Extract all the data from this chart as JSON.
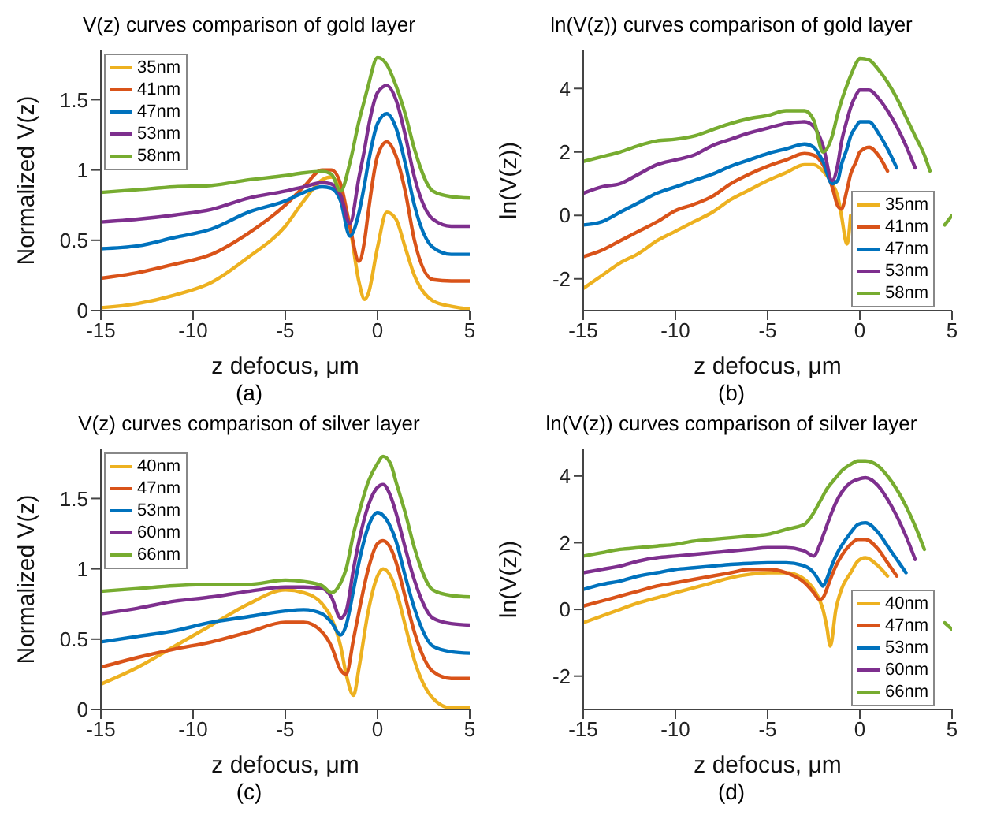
{
  "chart_data": [
    {
      "type": "line",
      "title": "V(z) curves comparison of gold layer",
      "xlabel": "z defocus, μm",
      "ylabel": "Normalized V(z)",
      "annotations": [
        "(a)"
      ],
      "legend": "top left",
      "xlim": [
        -15,
        5
      ],
      "xticks": [
        -15,
        -10,
        -5,
        0,
        5
      ],
      "ylim": [
        0,
        1.85
      ],
      "yticks": [
        0,
        0.5,
        1,
        1.5
      ],
      "x": [
        -15,
        -13,
        -11,
        -9,
        -7,
        -5,
        -4,
        -3,
        -2.5,
        -2,
        -1.5,
        -1,
        -0.7,
        -0.5,
        0,
        0.5,
        1,
        1.5,
        2,
        3,
        4,
        5
      ],
      "series": [
        {
          "name": "35nm",
          "color": "#edb120",
          "values": [
            0.02,
            0.05,
            0.11,
            0.2,
            0.38,
            0.6,
            0.78,
            0.93,
            0.95,
            0.85,
            0.6,
            0.2,
            0.08,
            0.12,
            0.45,
            0.7,
            0.65,
            0.45,
            0.25,
            0.07,
            0.03,
            0.01
          ]
        },
        {
          "name": "41nm",
          "color": "#d95319",
          "values": [
            0.23,
            0.27,
            0.33,
            0.4,
            0.55,
            0.75,
            0.88,
            1.0,
            1.0,
            0.9,
            0.6,
            0.35,
            0.5,
            0.7,
            1.1,
            1.2,
            1.1,
            0.85,
            0.5,
            0.22,
            0.21,
            0.21
          ]
        },
        {
          "name": "47nm",
          "color": "#0072bd",
          "values": [
            0.44,
            0.46,
            0.52,
            0.58,
            0.7,
            0.78,
            0.84,
            0.88,
            0.87,
            0.78,
            0.53,
            0.7,
            0.9,
            1.05,
            1.33,
            1.4,
            1.3,
            1.05,
            0.75,
            0.45,
            0.4,
            0.4
          ]
        },
        {
          "name": "53nm",
          "color": "#7e2f8e",
          "values": [
            0.63,
            0.65,
            0.68,
            0.72,
            0.8,
            0.85,
            0.88,
            0.91,
            0.9,
            0.82,
            0.62,
            0.95,
            1.15,
            1.3,
            1.55,
            1.6,
            1.5,
            1.25,
            0.95,
            0.65,
            0.6,
            0.6
          ]
        },
        {
          "name": "58nm",
          "color": "#77ac30",
          "values": [
            0.84,
            0.86,
            0.88,
            0.89,
            0.93,
            0.96,
            0.98,
            0.99,
            0.97,
            0.85,
            1.05,
            1.35,
            1.5,
            1.6,
            1.8,
            1.75,
            1.6,
            1.4,
            1.15,
            0.85,
            0.81,
            0.8
          ]
        }
      ]
    },
    {
      "type": "line",
      "title": "ln(V(z)) curves comparison of gold layer",
      "xlabel": "z defocus, μm",
      "ylabel": "ln(V(z))",
      "annotations": [
        "(b)"
      ],
      "legend": "bottom right",
      "xlim": [
        -15,
        5
      ],
      "xticks": [
        -15,
        -10,
        -5,
        0,
        5
      ],
      "ylim": [
        -3,
        5.2
      ],
      "yticks": [
        -2,
        0,
        2,
        4
      ],
      "x": [
        -15,
        -14,
        -13,
        -12,
        -11,
        -10,
        -9,
        -8,
        -7,
        -6,
        -5,
        -4,
        -3,
        -2.5,
        -2,
        -1.5,
        -1.2,
        -1,
        -0.7,
        -0.5,
        -0.2,
        0,
        0.5,
        1,
        1.5,
        2,
        2.5,
        3,
        3.5,
        3.8,
        4.3,
        4.6,
        5
      ],
      "series": [
        {
          "name": "35nm",
          "color": "#edb120",
          "values": [
            -2.3,
            -1.9,
            -1.5,
            -1.2,
            -0.8,
            -0.5,
            -0.2,
            0.1,
            0.5,
            0.8,
            1.1,
            1.35,
            1.6,
            1.6,
            1.4,
            1.0,
            0.6,
            0.0,
            -0.9,
            0.0,
            null,
            null,
            null,
            null,
            null,
            null,
            null,
            null,
            null,
            null,
            null,
            null,
            null
          ]
        },
        {
          "name": "41nm",
          "color": "#d95319",
          "values": [
            -1.3,
            -1.1,
            -0.8,
            -0.5,
            -0.2,
            0.15,
            0.35,
            0.6,
            1.0,
            1.3,
            1.55,
            1.75,
            1.95,
            1.9,
            1.6,
            0.9,
            0.3,
            0.2,
            0.8,
            1.3,
            1.7,
            2.0,
            2.15,
            1.9,
            1.4,
            null,
            null,
            null,
            null,
            null,
            null,
            null,
            null
          ]
        },
        {
          "name": "47nm",
          "color": "#0072bd",
          "values": [
            -0.3,
            -0.2,
            0.1,
            0.4,
            0.7,
            0.9,
            1.1,
            1.3,
            1.55,
            1.75,
            1.95,
            2.1,
            2.25,
            2.15,
            1.7,
            1.0,
            1.1,
            1.6,
            2.1,
            2.5,
            2.8,
            2.95,
            2.95,
            2.6,
            2.1,
            1.5,
            null,
            null,
            null,
            null,
            null,
            null,
            null
          ]
        },
        {
          "name": "53nm",
          "color": "#7e2f8e",
          "values": [
            0.7,
            0.9,
            1.0,
            1.3,
            1.6,
            1.75,
            1.9,
            2.2,
            2.4,
            2.6,
            2.75,
            2.9,
            2.95,
            2.8,
            2.2,
            1.1,
            1.6,
            2.3,
            3.0,
            3.4,
            3.8,
            3.95,
            3.95,
            3.7,
            3.3,
            2.8,
            2.2,
            1.5,
            null,
            null,
            null,
            null,
            null
          ]
        },
        {
          "name": "58nm",
          "color": "#77ac30",
          "values": [
            1.7,
            1.85,
            2.0,
            2.2,
            2.35,
            2.4,
            2.5,
            2.7,
            2.9,
            3.05,
            3.15,
            3.3,
            3.3,
            3.0,
            2.0,
            2.5,
            3.2,
            3.6,
            4.1,
            4.4,
            4.8,
            4.95,
            4.9,
            4.6,
            4.2,
            3.7,
            3.1,
            2.5,
            1.9,
            1.4,
            null,
            -0.3,
            0.0
          ]
        }
      ]
    },
    {
      "type": "line",
      "title": "V(z) curves comparison of silver layer",
      "xlabel": "z defocus, μm",
      "ylabel": "Normalized V(z)",
      "annotations": [
        "(c)"
      ],
      "legend": "top left",
      "xlim": [
        -15,
        5
      ],
      "xticks": [
        -15,
        -10,
        -5,
        0,
        5
      ],
      "ylim": [
        0,
        1.85
      ],
      "yticks": [
        0,
        0.5,
        1,
        1.5
      ],
      "x": [
        -15,
        -13,
        -11,
        -9,
        -7,
        -5,
        -4,
        -3,
        -2.5,
        -2,
        -1.7,
        -1.3,
        -1,
        -0.5,
        0,
        0.3,
        0.7,
        1,
        1.5,
        2,
        3,
        4,
        5
      ],
      "series": [
        {
          "name": "40nm",
          "color": "#edb120",
          "values": [
            0.18,
            0.3,
            0.45,
            0.6,
            0.75,
            0.85,
            0.83,
            0.75,
            0.65,
            0.45,
            0.25,
            0.1,
            0.3,
            0.7,
            0.95,
            1.0,
            0.95,
            0.85,
            0.6,
            0.35,
            0.08,
            0.01,
            0.01
          ]
        },
        {
          "name": "47nm",
          "color": "#d95319",
          "values": [
            0.3,
            0.37,
            0.43,
            0.48,
            0.55,
            0.62,
            0.62,
            0.55,
            0.45,
            0.28,
            0.25,
            0.5,
            0.7,
            1.0,
            1.18,
            1.2,
            1.15,
            1.05,
            0.8,
            0.55,
            0.27,
            0.22,
            0.22
          ]
        },
        {
          "name": "53nm",
          "color": "#0072bd",
          "values": [
            0.48,
            0.52,
            0.56,
            0.62,
            0.66,
            0.7,
            0.71,
            0.68,
            0.62,
            0.53,
            0.6,
            0.85,
            1.05,
            1.3,
            1.4,
            1.38,
            1.3,
            1.2,
            0.95,
            0.72,
            0.45,
            0.41,
            0.4
          ]
        },
        {
          "name": "60nm",
          "color": "#7e2f8e",
          "values": [
            0.68,
            0.72,
            0.77,
            0.8,
            0.84,
            0.87,
            0.87,
            0.86,
            0.8,
            0.65,
            0.7,
            1.0,
            1.2,
            1.45,
            1.58,
            1.6,
            1.52,
            1.4,
            1.15,
            0.92,
            0.65,
            0.61,
            0.6
          ]
        },
        {
          "name": "66nm",
          "color": "#77ac30",
          "values": [
            0.84,
            0.86,
            0.88,
            0.89,
            0.89,
            0.92,
            0.91,
            0.88,
            0.83,
            0.9,
            1.0,
            1.25,
            1.4,
            1.62,
            1.75,
            1.8,
            1.75,
            1.62,
            1.4,
            1.15,
            0.85,
            0.81,
            0.8
          ]
        }
      ]
    },
    {
      "type": "line",
      "title": "ln(V(z)) curves comparison of silver layer",
      "xlabel": "z defocus, μm",
      "ylabel": "ln(V(z))",
      "annotations": [
        "(d)"
      ],
      "legend": "bottom right",
      "xlim": [
        -15,
        5
      ],
      "xticks": [
        -15,
        -10,
        -5,
        0,
        5
      ],
      "ylim": [
        -3,
        4.8
      ],
      "yticks": [
        -2,
        0,
        2,
        4
      ],
      "x": [
        -15,
        -14,
        -13,
        -12,
        -11,
        -10,
        -9,
        -8,
        -7,
        -6,
        -5,
        -4,
        -3,
        -2.5,
        -2.2,
        -2,
        -1.8,
        -1.6,
        -1.3,
        -1,
        -0.5,
        -0.1,
        0.3,
        1,
        1.5,
        2,
        2.5,
        3,
        3.5,
        4,
        4.3,
        4.6,
        5
      ],
      "series": [
        {
          "name": "40nm",
          "color": "#edb120",
          "values": [
            -0.4,
            -0.2,
            0.0,
            0.2,
            0.35,
            0.5,
            0.65,
            0.8,
            0.95,
            1.05,
            1.1,
            1.1,
            0.9,
            0.6,
            0.3,
            0.0,
            -0.5,
            -1.1,
            0.0,
            0.6,
            1.1,
            1.45,
            1.55,
            1.3,
            1.0,
            null,
            null,
            null,
            null,
            null,
            null,
            null,
            null
          ]
        },
        {
          "name": "47nm",
          "color": "#d95319",
          "values": [
            0.1,
            0.25,
            0.4,
            0.55,
            0.7,
            0.8,
            0.9,
            1.0,
            1.1,
            1.2,
            1.2,
            1.1,
            0.8,
            0.5,
            0.3,
            0.35,
            0.6,
            0.9,
            1.3,
            1.6,
            1.95,
            2.1,
            2.1,
            1.8,
            1.4,
            1.0,
            null,
            null,
            null,
            null,
            null,
            null,
            null
          ]
        },
        {
          "name": "53nm",
          "color": "#0072bd",
          "values": [
            0.6,
            0.75,
            0.85,
            1.0,
            1.1,
            1.2,
            1.25,
            1.3,
            1.35,
            1.38,
            1.4,
            1.4,
            1.3,
            1.1,
            0.85,
            0.7,
            0.9,
            1.2,
            1.6,
            1.9,
            2.3,
            2.55,
            2.6,
            2.3,
            1.9,
            1.5,
            1.1,
            null,
            null,
            null,
            null,
            null,
            null
          ]
        },
        {
          "name": "60nm",
          "color": "#7e2f8e",
          "values": [
            1.1,
            1.2,
            1.3,
            1.45,
            1.55,
            1.6,
            1.65,
            1.7,
            1.75,
            1.8,
            1.85,
            1.85,
            1.75,
            1.6,
            1.9,
            2.2,
            2.5,
            2.8,
            3.2,
            3.5,
            3.8,
            3.9,
            3.95,
            3.7,
            3.3,
            2.8,
            2.2,
            1.5,
            null,
            null,
            null,
            null,
            null
          ]
        },
        {
          "name": "66nm",
          "color": "#77ac30",
          "values": [
            1.6,
            1.7,
            1.8,
            1.85,
            1.9,
            1.95,
            2.05,
            2.1,
            2.15,
            2.2,
            2.25,
            2.4,
            2.55,
            2.9,
            3.2,
            3.4,
            3.6,
            3.75,
            3.95,
            4.15,
            4.35,
            4.45,
            4.45,
            4.3,
            4.0,
            3.6,
            3.1,
            2.5,
            1.8,
            null,
            null,
            -0.4,
            -0.6
          ]
        }
      ]
    }
  ]
}
